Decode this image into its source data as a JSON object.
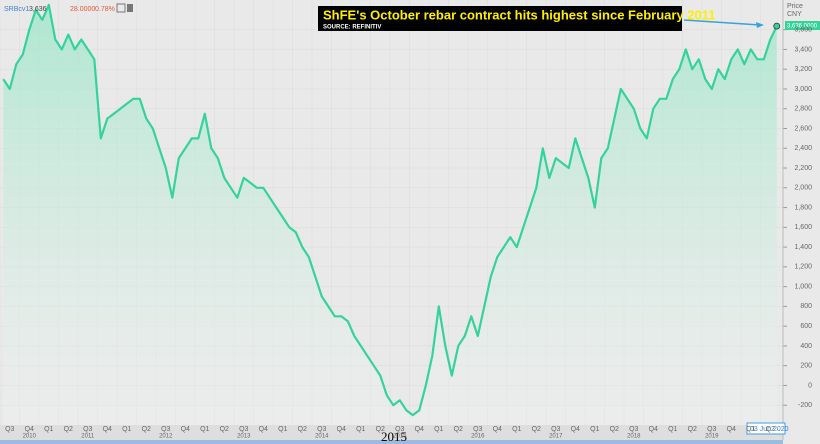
{
  "chart_data": {
    "type": "area",
    "title": "ShFE's October rebar contract hits highest since February 2011",
    "subtitle": "SOURCE: REFINITIV",
    "header": {
      "ric": "SRBcv1",
      "last": "3,636",
      "change": "28.0000",
      "change_pct": "0.78%"
    },
    "y_axis_label": "Price",
    "y_axis_unit": "CNY",
    "last_value_tag": "3,636.0000",
    "date_tag": "03 Jun 2020",
    "caption": "2015",
    "categories": [
      null,
      "Q3",
      null,
      null,
      "Q4",
      null,
      null,
      "Q1",
      null,
      null,
      "Q2",
      null,
      null,
      "Q3",
      null,
      null,
      "Q4",
      null,
      null,
      "Q1",
      null,
      null,
      "Q2",
      null,
      null,
      "Q3",
      null,
      null,
      "Q4",
      null,
      null,
      "Q1",
      null,
      null,
      "Q2",
      null,
      null,
      "Q3",
      null,
      null,
      "Q4",
      null,
      null,
      "Q1",
      null,
      null,
      "Q2",
      null,
      null,
      "Q3",
      null,
      null,
      "Q4",
      null,
      null,
      "Q1",
      null,
      null,
      "Q2",
      null,
      null,
      "Q3",
      null,
      null,
      "Q4",
      null,
      null,
      "Q1",
      null,
      null,
      "Q2",
      null,
      null,
      "Q3",
      null,
      null,
      "Q4",
      null,
      null,
      "Q1",
      null,
      null,
      "Q2",
      null,
      null,
      "Q3",
      null,
      null,
      "Q4",
      null,
      null,
      "Q1",
      null,
      null,
      "Q2",
      null,
      null,
      "Q3",
      null,
      null,
      "Q4",
      null,
      null,
      "Q1",
      null,
      null,
      "Q2",
      null,
      null,
      "Q3",
      null,
      null,
      "Q4",
      null,
      null,
      "Q1",
      null,
      null,
      "Q2",
      null
    ],
    "category_years": [
      null,
      null,
      null,
      null,
      "2010",
      null,
      null,
      null,
      null,
      null,
      null,
      null,
      null,
      "2011",
      null,
      null,
      null,
      null,
      null,
      null,
      null,
      null,
      null,
      null,
      null,
      "2012",
      null,
      null,
      null,
      null,
      null,
      null,
      null,
      null,
      null,
      null,
      null,
      "2013",
      null,
      null,
      null,
      null,
      null,
      null,
      null,
      null,
      null,
      null,
      null,
      "2014",
      null,
      null,
      null,
      null,
      null,
      null,
      null,
      null,
      null,
      null,
      null,
      "2015",
      null,
      null,
      null,
      null,
      null,
      null,
      null,
      null,
      null,
      null,
      null,
      "2016",
      null,
      null,
      null,
      null,
      null,
      null,
      null,
      null,
      null,
      null,
      null,
      "2017",
      null,
      null,
      null,
      null,
      null,
      null,
      null,
      null,
      null,
      null,
      null,
      "2018",
      null,
      null,
      null,
      null,
      null,
      null,
      null,
      null,
      null,
      null,
      null,
      "2019",
      null,
      null,
      null,
      null,
      null,
      null,
      null,
      null,
      null,
      null,
      "2020",
      null
    ],
    "series": [
      {
        "name": "SRBcv1",
        "color": "#34d39b",
        "values": [
          3100,
          3000,
          3250,
          3350,
          3600,
          3800,
          3700,
          3850,
          3500,
          3400,
          3550,
          3400,
          3500,
          3400,
          3300,
          2500,
          2700,
          2750,
          2800,
          2850,
          2900,
          2900,
          2700,
          2600,
          2400,
          2200,
          1900,
          2300,
          2400,
          2500,
          2500,
          2750,
          2400,
          2300,
          2100,
          2000,
          1900,
          2100,
          2050,
          2000,
          2000,
          1900,
          1800,
          1700,
          1600,
          1550,
          1400,
          1300,
          1100,
          900,
          800,
          700,
          700,
          650,
          500,
          400,
          300,
          200,
          100,
          -100,
          -200,
          -150,
          -250,
          -300,
          -250,
          0,
          300,
          800,
          400,
          100,
          400,
          500,
          700,
          500,
          800,
          1100,
          1300,
          1400,
          1500,
          1400,
          1600,
          1800,
          2000,
          2400,
          2100,
          2300,
          2250,
          2200,
          2500,
          2300,
          2100,
          1800,
          2300,
          2400,
          2700,
          3000,
          2900,
          2800,
          2600,
          2500,
          2800,
          2900,
          2900,
          3100,
          3200,
          3400,
          3200,
          3300,
          3100,
          3000,
          3200,
          3100,
          3300,
          3400,
          3250,
          3400,
          3300,
          3300,
          3500,
          3636
        ]
      }
    ],
    "ylim": [
      -400,
      3900
    ],
    "yticks": [
      -200,
      0,
      200,
      400,
      600,
      800,
      {
        "value": 1000,
        "label": "1,000"
      },
      {
        "value": 1200,
        "label": "1,200"
      },
      {
        "value": 1400,
        "label": "1,400"
      },
      {
        "value": 1600,
        "label": "1,600"
      },
      {
        "value": 1800,
        "label": "1,800"
      },
      {
        "value": 2000,
        "label": "2,000"
      },
      {
        "value": 2200,
        "label": "2,200"
      },
      {
        "value": 2400,
        "label": "2,400"
      },
      {
        "value": 2600,
        "label": "2,600"
      },
      {
        "value": 2800,
        "label": "2,800"
      },
      {
        "value": 3000,
        "label": "3,000"
      },
      {
        "value": 3200,
        "label": "3,200"
      },
      {
        "value": 3400,
        "label": "3,400"
      },
      {
        "value": 3600,
        "label": "3,600"
      }
    ],
    "grid": true
  }
}
